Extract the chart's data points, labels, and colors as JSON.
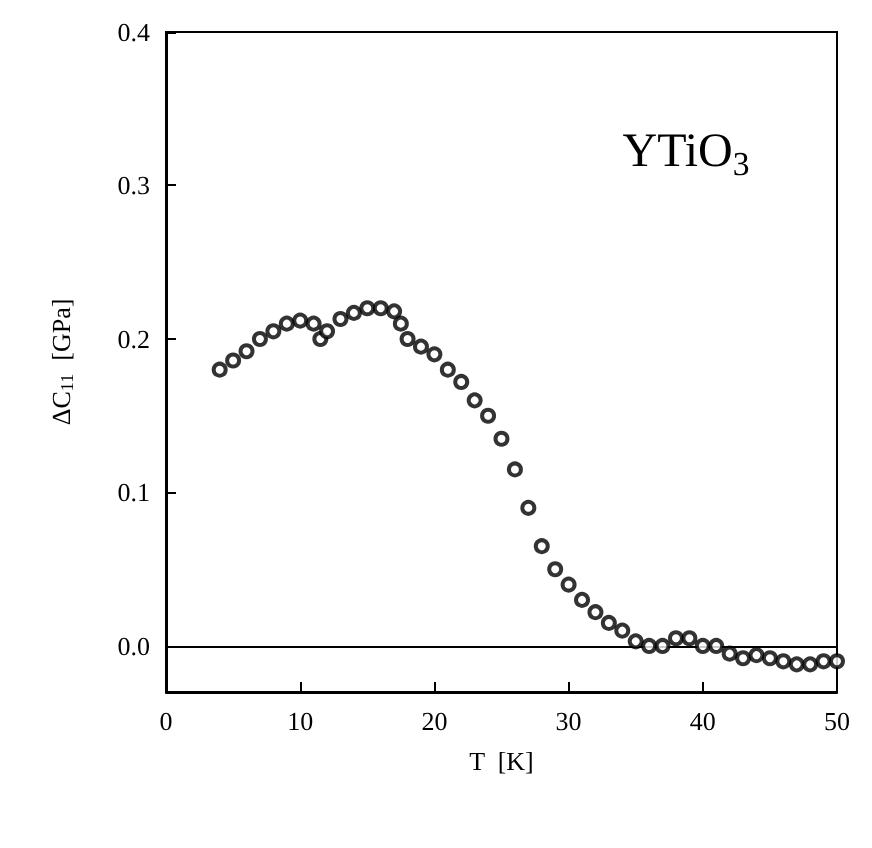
{
  "chart_data": {
    "type": "scatter",
    "xlabel": "T  [K]",
    "ylabel": "ΔC$_{11}$  [GPa]",
    "marker": "circle",
    "xlim": [
      0,
      50
    ],
    "xticks": [
      0,
      10,
      20,
      30,
      40,
      50
    ],
    "ylim": [
      -0.03,
      0.4
    ],
    "yticks": [
      {
        "value": 0,
        "label": "0.0"
      },
      {
        "value": 0.1,
        "label": "0.1"
      },
      {
        "value": 0.2,
        "label": "0.2"
      },
      {
        "value": 0.3,
        "label": "0.3"
      },
      {
        "value": 0.4,
        "label": "0.4"
      }
    ],
    "annotations": [
      "YTiO$_{3}$"
    ],
    "ref_lines": [
      {
        "axis": "y",
        "value": 0,
        "color": "#000000",
        "line_style": "solid"
      }
    ],
    "series": [
      {
        "color": "#000000",
        "x": [
          4,
          5,
          6,
          7,
          8,
          9,
          10,
          11,
          11.5,
          12,
          13,
          14,
          15,
          16,
          17,
          17.5,
          18,
          19,
          20,
          21,
          22,
          23,
          24,
          25,
          26,
          27,
          28,
          29,
          30,
          31,
          32,
          33,
          34,
          35,
          36,
          37,
          38,
          39,
          40,
          41,
          42,
          43,
          44,
          45,
          46,
          47,
          48,
          49,
          50
        ],
        "values": [
          0.18,
          0.186,
          0.192,
          0.2,
          0.205,
          0.21,
          0.212,
          0.21,
          0.2,
          0.205,
          0.213,
          0.217,
          0.22,
          0.22,
          0.218,
          0.21,
          0.2,
          0.195,
          0.19,
          0.18,
          0.172,
          0.16,
          0.15,
          0.135,
          0.115,
          0.09,
          0.065,
          0.05,
          0.04,
          0.03,
          0.022,
          0.015,
          0.01,
          0.003,
          0,
          0,
          0.005,
          0.005,
          0,
          0,
          -0.005,
          -0.008,
          -0.006,
          -0.008,
          -0.01,
          -0.012,
          -0.012,
          -0.01,
          -0.01
        ]
      }
    ]
  }
}
